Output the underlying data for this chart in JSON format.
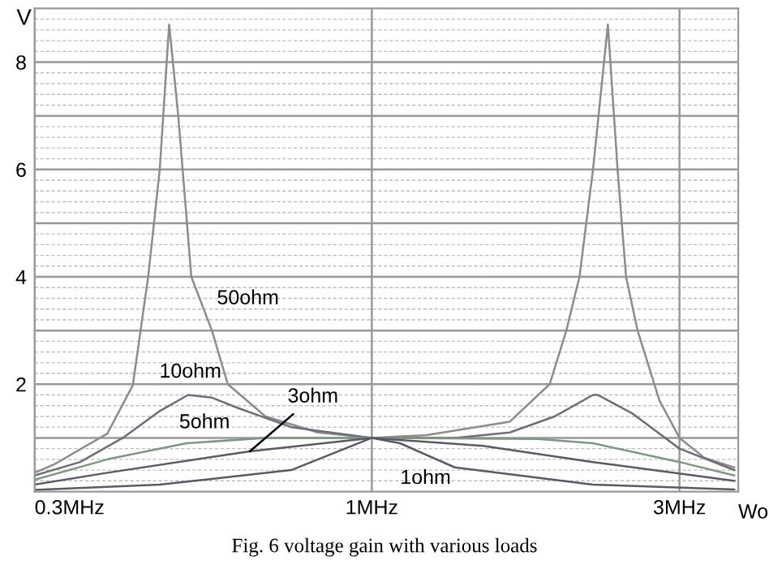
{
  "chart_data": {
    "type": "line",
    "ylabel": "V",
    "xlabel": "Wo",
    "log": "x",
    "xlim": [
      0.3,
      3.7
    ],
    "xticks": [
      {
        "value": 0.3,
        "label": "0.3MHz"
      },
      {
        "value": 1,
        "label": "1MHz"
      },
      {
        "value": 3,
        "label": "3MHz"
      }
    ],
    "ylim": [
      0,
      9
    ],
    "yticks": [
      {
        "value": 1,
        "label": null
      },
      2,
      {
        "value": 3,
        "label": null
      },
      4,
      {
        "value": 5,
        "label": null
      },
      6,
      {
        "value": 7,
        "label": null
      },
      8
    ],
    "grid": true,
    "series": [
      {
        "color": "#8c8c8c",
        "x": [
          0.3,
          0.321,
          0.389,
          0.426,
          0.45,
          0.469,
          0.485,
          0.501,
          0.525,
          0.565,
          0.598,
          0.684,
          0.825,
          1,
          1.216,
          1.636,
          1.887,
          2.003,
          2.099,
          2.203,
          2.323,
          2.405,
          2.479,
          2.583,
          2.792,
          3.0,
          3.278,
          3.648
        ],
        "values": [
          0.35,
          0.5,
          1.08,
          1.98,
          4,
          6,
          8.7,
          7,
          4,
          3,
          2,
          1.4,
          1.1,
          1.0,
          1.05,
          1.3,
          2,
          3,
          4,
          6,
          8.7,
          6,
          4,
          3,
          1.7,
          1.0,
          0.63,
          0.45
        ]
      },
      {
        "color": "#6e6e7a",
        "x": [
          0.3,
          0.353,
          0.411,
          0.469,
          0.519,
          0.565,
          0.622,
          0.75,
          1,
          1.345,
          1.636,
          1.921,
          2.203,
          2.241,
          2.539,
          3.0,
          3.648
        ],
        "values": [
          0.3,
          0.55,
          1.0,
          1.5,
          1.8,
          1.75,
          1.55,
          1.2,
          1.0,
          1.0,
          1.1,
          1.4,
          1.8,
          1.8,
          1.45,
          0.8,
          0.4
        ]
      },
      {
        "color": "#7a9a80",
        "x": [
          0.3,
          0.389,
          0.516,
          0.684,
          1,
          1.81,
          2.203,
          3.0,
          3.648
        ],
        "values": [
          0.22,
          0.6,
          0.9,
          1.0,
          1.0,
          0.98,
          0.9,
          0.55,
          0.3
        ]
      },
      {
        "color": "#5a5a66",
        "x": [
          0.3,
          0.389,
          0.647,
          1,
          1.488,
          2.203,
          3.648
        ],
        "values": [
          0.13,
          0.35,
          0.75,
          1.0,
          0.85,
          0.55,
          0.2
        ]
      },
      {
        "color": "#5a5a66",
        "x": [
          0.3,
          0.469,
          0.75,
          1,
          1.106,
          1.345,
          2.203,
          3.648
        ],
        "values": [
          0.03,
          0.13,
          0.4,
          1.0,
          0.9,
          0.45,
          0.13,
          0.04
        ]
      }
    ],
    "annotations": [
      {
        "text": "50ohm",
        "x": 0.565,
        "y": 3
      },
      {
        "text": "10ohm",
        "x": 0.519,
        "y": 1.8
      },
      {
        "text": "5ohm",
        "x": 0.516,
        "y": 0.9
      },
      {
        "text": "3ohm",
        "x": 0.647,
        "y": 0.75
      },
      {
        "text": "1ohm",
        "x": 1.345,
        "y": 0.45
      },
      "Fig. 6 voltage gain with various loads"
    ]
  }
}
